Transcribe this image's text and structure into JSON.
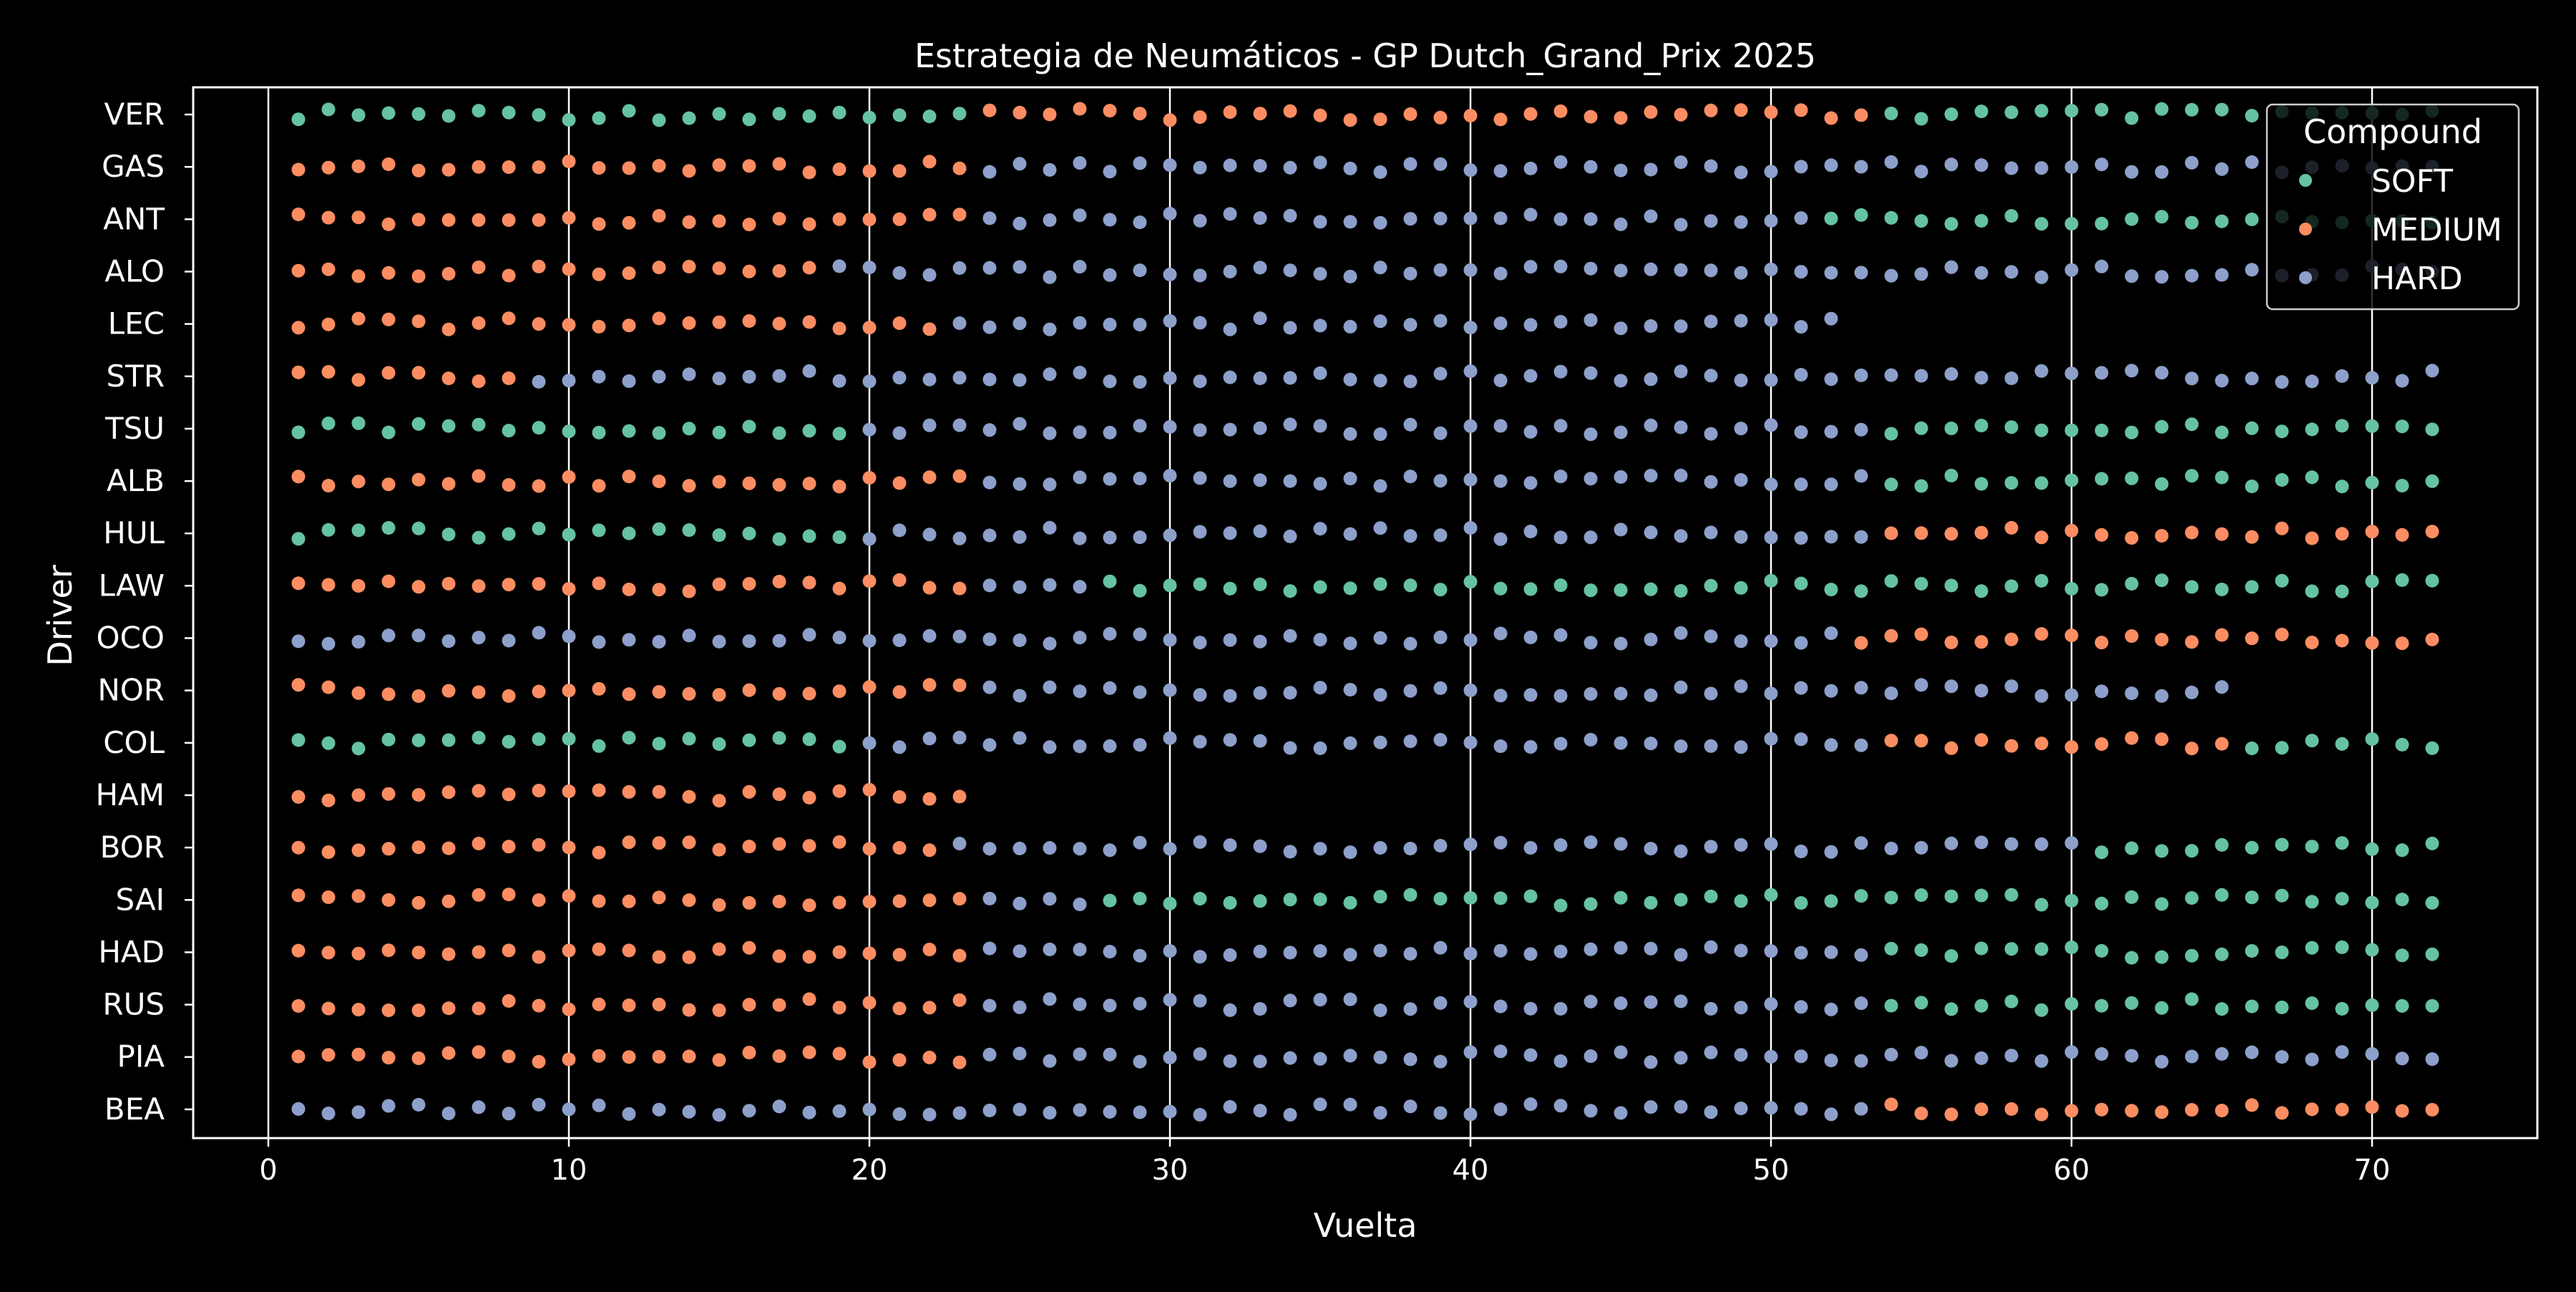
{
  "chart_data": {
    "type": "scatter",
    "title": "Estrategia de Neumáticos - GP Dutch_Grand_Prix 2025",
    "xlabel": "Vuelta",
    "ylabel": "Driver",
    "xlim": [
      -2.5,
      75.5
    ],
    "x_ticks": [
      0,
      10,
      20,
      30,
      40,
      50,
      60,
      70
    ],
    "grid": "vertical lines on x ticks",
    "legend": {
      "title": "Compound",
      "placement": "top-right",
      "entries": [
        "SOFT",
        "MEDIUM",
        "HARD"
      ]
    },
    "colors": {
      "SOFT": "#66c2a5",
      "MEDIUM": "#fc8d62",
      "HARD": "#8da0cb",
      "background": "#000000",
      "foreground": "#ffffff"
    },
    "drivers": [
      "VER",
      "GAS",
      "ANT",
      "ALO",
      "LEC",
      "STR",
      "TSU",
      "ALB",
      "HUL",
      "LAW",
      "OCO",
      "NOR",
      "COL",
      "HAM",
      "BOR",
      "SAI",
      "HAD",
      "RUS",
      "PIA",
      "BEA"
    ],
    "stints": [
      {
        "driver": "VER",
        "compound": "SOFT",
        "laps": [
          1,
          23
        ]
      },
      {
        "driver": "VER",
        "compound": "MEDIUM",
        "laps": [
          24,
          53
        ]
      },
      {
        "driver": "VER",
        "compound": "SOFT",
        "laps": [
          54,
          72
        ]
      },
      {
        "driver": "GAS",
        "compound": "MEDIUM",
        "laps": [
          1,
          23
        ]
      },
      {
        "driver": "GAS",
        "compound": "HARD",
        "laps": [
          24,
          72
        ]
      },
      {
        "driver": "ANT",
        "compound": "MEDIUM",
        "laps": [
          1,
          23
        ]
      },
      {
        "driver": "ANT",
        "compound": "HARD",
        "laps": [
          24,
          51
        ]
      },
      {
        "driver": "ANT",
        "compound": "SOFT",
        "laps": [
          52,
          72
        ]
      },
      {
        "driver": "ALO",
        "compound": "MEDIUM",
        "laps": [
          1,
          18
        ]
      },
      {
        "driver": "ALO",
        "compound": "HARD",
        "laps": [
          19,
          72
        ]
      },
      {
        "driver": "LEC",
        "compound": "MEDIUM",
        "laps": [
          1,
          22
        ]
      },
      {
        "driver": "LEC",
        "compound": "HARD",
        "laps": [
          23,
          52
        ]
      },
      {
        "driver": "STR",
        "compound": "MEDIUM",
        "laps": [
          1,
          8
        ]
      },
      {
        "driver": "STR",
        "compound": "HARD",
        "laps": [
          9,
          72
        ]
      },
      {
        "driver": "TSU",
        "compound": "SOFT",
        "laps": [
          1,
          19
        ]
      },
      {
        "driver": "TSU",
        "compound": "HARD",
        "laps": [
          20,
          53
        ]
      },
      {
        "driver": "TSU",
        "compound": "SOFT",
        "laps": [
          54,
          72
        ]
      },
      {
        "driver": "ALB",
        "compound": "MEDIUM",
        "laps": [
          1,
          23
        ]
      },
      {
        "driver": "ALB",
        "compound": "HARD",
        "laps": [
          24,
          53
        ]
      },
      {
        "driver": "ALB",
        "compound": "SOFT",
        "laps": [
          54,
          72
        ]
      },
      {
        "driver": "HUL",
        "compound": "SOFT",
        "laps": [
          1,
          19
        ]
      },
      {
        "driver": "HUL",
        "compound": "HARD",
        "laps": [
          20,
          53
        ]
      },
      {
        "driver": "HUL",
        "compound": "MEDIUM",
        "laps": [
          54,
          72
        ]
      },
      {
        "driver": "LAW",
        "compound": "MEDIUM",
        "laps": [
          1,
          23
        ]
      },
      {
        "driver": "LAW",
        "compound": "HARD",
        "laps": [
          24,
          27
        ]
      },
      {
        "driver": "LAW",
        "compound": "SOFT",
        "laps": [
          28,
          72
        ]
      },
      {
        "driver": "OCO",
        "compound": "HARD",
        "laps": [
          1,
          52
        ]
      },
      {
        "driver": "OCO",
        "compound": "MEDIUM",
        "laps": [
          53,
          72
        ]
      },
      {
        "driver": "NOR",
        "compound": "MEDIUM",
        "laps": [
          1,
          23
        ]
      },
      {
        "driver": "NOR",
        "compound": "HARD",
        "laps": [
          24,
          65
        ]
      },
      {
        "driver": "COL",
        "compound": "SOFT",
        "laps": [
          1,
          19
        ]
      },
      {
        "driver": "COL",
        "compound": "HARD",
        "laps": [
          20,
          53
        ]
      },
      {
        "driver": "COL",
        "compound": "MEDIUM",
        "laps": [
          54,
          65
        ]
      },
      {
        "driver": "COL",
        "compound": "SOFT",
        "laps": [
          66,
          72
        ]
      },
      {
        "driver": "HAM",
        "compound": "MEDIUM",
        "laps": [
          1,
          23
        ]
      },
      {
        "driver": "BOR",
        "compound": "MEDIUM",
        "laps": [
          1,
          22
        ]
      },
      {
        "driver": "BOR",
        "compound": "HARD",
        "laps": [
          23,
          60
        ]
      },
      {
        "driver": "BOR",
        "compound": "SOFT",
        "laps": [
          61,
          72
        ]
      },
      {
        "driver": "SAI",
        "compound": "MEDIUM",
        "laps": [
          1,
          23
        ]
      },
      {
        "driver": "SAI",
        "compound": "HARD",
        "laps": [
          24,
          27
        ]
      },
      {
        "driver": "SAI",
        "compound": "SOFT",
        "laps": [
          28,
          72
        ]
      },
      {
        "driver": "HAD",
        "compound": "MEDIUM",
        "laps": [
          1,
          23
        ]
      },
      {
        "driver": "HAD",
        "compound": "HARD",
        "laps": [
          24,
          53
        ]
      },
      {
        "driver": "HAD",
        "compound": "SOFT",
        "laps": [
          54,
          72
        ]
      },
      {
        "driver": "RUS",
        "compound": "MEDIUM",
        "laps": [
          1,
          23
        ]
      },
      {
        "driver": "RUS",
        "compound": "HARD",
        "laps": [
          24,
          53
        ]
      },
      {
        "driver": "RUS",
        "compound": "SOFT",
        "laps": [
          54,
          72
        ]
      },
      {
        "driver": "PIA",
        "compound": "MEDIUM",
        "laps": [
          1,
          23
        ]
      },
      {
        "driver": "PIA",
        "compound": "HARD",
        "laps": [
          24,
          72
        ]
      },
      {
        "driver": "BEA",
        "compound": "HARD",
        "laps": [
          1,
          53
        ]
      },
      {
        "driver": "BEA",
        "compound": "MEDIUM",
        "laps": [
          54,
          72
        ]
      }
    ]
  }
}
